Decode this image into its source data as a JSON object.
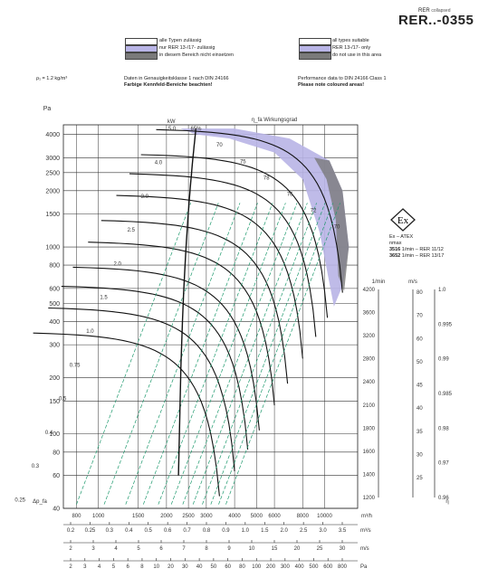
{
  "header": {
    "series_label": "RER",
    "series_suffix": "collapsed",
    "model": "RER..-0355"
  },
  "legend": {
    "de": [
      {
        "label": "alle Typen zulässig",
        "color": "#ffffff"
      },
      {
        "label": "nur RER 13-/17- zulässig",
        "color": "#b8b4e6"
      },
      {
        "label": "in diesem Bereich nicht einsetzen",
        "color": "#7a7a7a"
      }
    ],
    "en": [
      {
        "label": "all types suitable",
        "color": "#ffffff"
      },
      {
        "label": "RER 13-/17- only",
        "color": "#b8b4e6"
      },
      {
        "label": "do not use in this area",
        "color": "#7a7a7a"
      }
    ]
  },
  "info": {
    "density": "ρ₁ = 1.2 kg/m³",
    "de_line1": "Daten in Genauigkeitsklasse 1 nach DIN 24166",
    "de_line2": "Farbige Kennfeld-Bereiche beachten!",
    "en_line1": "Performance data to DIN 24166 Class 1",
    "en_line2": "Please note coloured areas!"
  },
  "atex": {
    "symbol": "Ex",
    "title": "Ex – ATEX",
    "nmax_label": "nmax",
    "line1_value": "3516",
    "line1_text": "1/min – RER 11/12",
    "line2_value": "3652",
    "line2_text": "1/min – RER 13/17"
  },
  "chart_data": {
    "type": "line",
    "title": "RER..-0355",
    "xlabel": "m³/h",
    "ylabel": "Δp_fa",
    "x_scale": "log",
    "y_scale": "log",
    "xlim": [
      700,
      14000
    ],
    "ylim": [
      40,
      4500
    ],
    "grid": true,
    "y_unit_label": "Pa",
    "y_ticks": [
      40,
      60,
      80,
      100,
      150,
      200,
      300,
      400,
      500,
      600,
      800,
      1000,
      1500,
      2000,
      2500,
      3000,
      4000
    ],
    "x_ticks": [
      800,
      1000,
      1500,
      2000,
      2500,
      3000,
      4000,
      5000,
      6000,
      8000,
      10000
    ],
    "x_tick_labels": [
      "800",
      "1000",
      "1500",
      "2000",
      "2500",
      "3000",
      "4000",
      "5000",
      "6000",
      "8000",
      "10000"
    ],
    "secondary_axes": {
      "m3s": {
        "label": "m³/s",
        "ticks": [
          "0.2",
          "0.25",
          "0.3",
          "0.4",
          "0.5",
          "0.6",
          "0.7",
          "0.8",
          "0.9",
          "1.0",
          "1.5",
          "2.0",
          "2.5",
          "3.0",
          "3.5"
        ]
      },
      "velocity": {
        "label": "m/s",
        "ticks": [
          "2",
          "3",
          "4",
          "5",
          "6",
          "7",
          "8",
          "9",
          "10",
          "15",
          "20",
          "25",
          "30"
        ]
      },
      "dyn_pressure": {
        "label": "Pa",
        "ticks": [
          "2",
          "3",
          "4",
          "5",
          "6",
          "8",
          "10",
          "20",
          "30",
          "40",
          "50",
          "60",
          "80",
          "100",
          "200",
          "300",
          "400",
          "500",
          "600",
          "800"
        ]
      },
      "rpm": {
        "label": "1/min",
        "ticks": [
          "1200",
          "1400",
          "1600",
          "1800",
          "2100",
          "2400",
          "2800",
          "3200",
          "3600",
          "4200"
        ]
      },
      "noise": {
        "label": "m/s",
        "ticks": [
          "25",
          "30",
          "35",
          "40",
          "45",
          "50",
          "60",
          "70",
          "80"
        ]
      },
      "efficiency": {
        "label": "η",
        "ticks": [
          "0.96",
          "0.97",
          "0.98",
          "0.985",
          "0.99",
          "0.995",
          "1.0"
        ]
      }
    },
    "kw_label": "kW",
    "kw_values": [
      "5.0",
      "4.0",
      "3.0",
      "2.5",
      "2.0",
      "1.5",
      "1.0",
      "0.75",
      "0.5",
      "0.4",
      "0.3",
      "0.25",
      "0.2",
      "0.15",
      "0.10"
    ],
    "efficiency_label": "η_fa Wirkungsgrad",
    "efficiency_values": [
      "65%",
      "70",
      "75",
      "78",
      "76",
      "72",
      "70",
      "60",
      "50",
      "40"
    ],
    "series": [
      {
        "name": "fan curve n=4200",
        "rpm": 4200
      },
      {
        "name": "fan curve n=3600",
        "rpm": 3600
      },
      {
        "name": "fan curve n=3200",
        "rpm": 3200
      },
      {
        "name": "fan curve n=2800",
        "rpm": 2800
      },
      {
        "name": "fan curve n=2400",
        "rpm": 2400
      },
      {
        "name": "fan curve n=2100",
        "rpm": 2100
      },
      {
        "name": "fan curve n=1800",
        "rpm": 1800
      },
      {
        "name": "fan curve n=1600",
        "rpm": 1600
      },
      {
        "name": "fan curve n=1400",
        "rpm": 1400
      },
      {
        "name": "fan curve n=1200",
        "rpm": 1200
      }
    ],
    "zones": [
      {
        "name": "RER 13-/17- only",
        "color": "#b8b4e6"
      },
      {
        "name": "do not use in this area",
        "color": "#7a7a7a"
      }
    ]
  }
}
